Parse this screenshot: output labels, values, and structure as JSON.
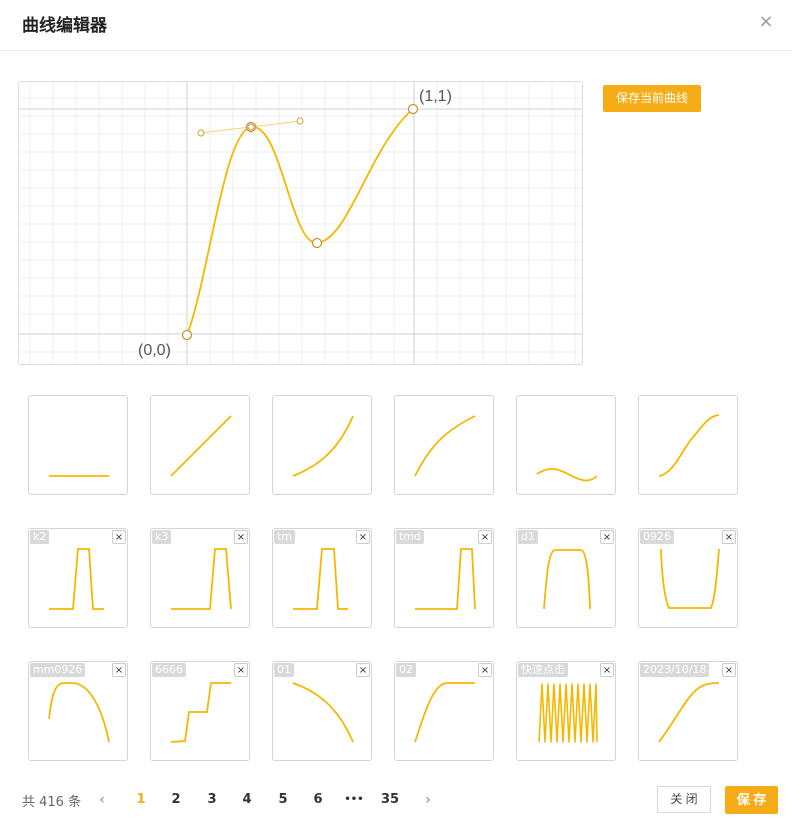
{
  "dialog": {
    "title": "曲线编辑器",
    "close_icon": "×"
  },
  "editor": {
    "origin_label": "(0,0)",
    "end_label": "(1,1)",
    "save_curve_label": "保存当前曲线",
    "colors": {
      "curve": "#f5b800",
      "grid": "#eeeeee",
      "axis": "#cfcfcf"
    }
  },
  "presets": [
    {
      "id": "preset-linear-flat"
    },
    {
      "id": "preset-linear"
    },
    {
      "id": "preset-ease-in"
    },
    {
      "id": "preset-ease-out"
    },
    {
      "id": "preset-wave"
    },
    {
      "id": "preset-ease-in-out"
    }
  ],
  "saved": [
    {
      "name": "k2"
    },
    {
      "name": "k3"
    },
    {
      "name": "tm"
    },
    {
      "name": "tmd"
    },
    {
      "name": "d1"
    },
    {
      "name": "0926"
    },
    {
      "name": "mm0926"
    },
    {
      "name": "6666"
    },
    {
      "name": "01"
    },
    {
      "name": "02"
    },
    {
      "name": "快速点击"
    },
    {
      "name": "2023/10/18"
    }
  ],
  "delete_icon": "×",
  "pagination": {
    "total": "共 416 条",
    "prev_icon": "‹",
    "next_icon": "›",
    "pages": [
      "1",
      "2",
      "3",
      "4",
      "5",
      "6",
      "•••",
      "35"
    ],
    "current": "1"
  },
  "footer": {
    "close_label": "关 闭",
    "save_label": "保 存"
  }
}
